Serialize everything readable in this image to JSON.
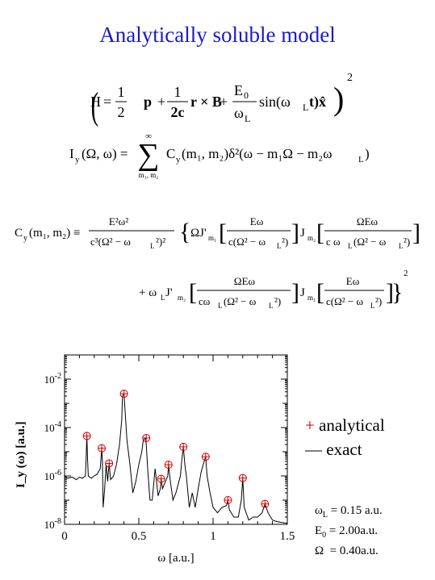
{
  "title": "Analytically soluble model",
  "equations": {
    "hamiltonian": {
      "lhs": "H",
      "half_num": "1",
      "half_den": "2",
      "p": "p",
      "frac2_num": "1",
      "frac2_den": "2c",
      "rxB": "r × B",
      "frac3_num": "E",
      "frac3_num_sub": "0",
      "frac3_den": "ω",
      "frac3_den_sub": "L",
      "sin": "sin(ω",
      "sin_sub": "L",
      "sin_end": "t)x̂",
      "power": "2"
    },
    "intensity": {
      "lhs": "I",
      "lhs_sub": "y",
      "args": "(Ω, ω) =",
      "sum_top": "∞",
      "sum_bottom": "m₁, m₂",
      "rhs": "C",
      "rhs_sub": "y",
      "rhs_rest": "(m₁, m₂)δ²(ω − m₁Ω − m₂ω",
      "rhs_sub2": "L",
      "rhs_close": ")"
    },
    "coefficient": {
      "lhs": "C",
      "lhs_sub": "y",
      "lhs_args": "(m₁, m₂) ≡",
      "prefactor_num": "E²ω²",
      "prefactor_den": "c³(Ω² − ω",
      "prefactor_den_sub": "L",
      "prefactor_den_end": "²)²",
      "term1_a": "ΩJ'",
      "term1_a_sub": "m₁",
      "term1_a_num": "Eω",
      "term1_a_den": "c(Ω² − ω",
      "term1_a_den_sub": "L",
      "term1_a_den_end": "²)",
      "term1_b": "J",
      "term1_b_sub": "m₂",
      "term1_b_num": "ΩEω",
      "term1_b_den": "c ω",
      "term1_b_den_sub": "L",
      "term1_b_den_end": "(Ω² − ω",
      "term1_b_den_sub2": "L",
      "term1_b_den_end2": "²)",
      "term2_prefix": "+ ω",
      "term2_prefix_sub": "L",
      "term2_a": "J'",
      "term2_a_sub": "m₂",
      "term2_a_num": "ΩEω",
      "term2_a_den": "cω",
      "term2_a_den_sub": "L",
      "term2_a_den_end": "(Ω² − ω",
      "term2_a_den_sub2": "L",
      "term2_a_den_end2": "²)",
      "term2_b": "J",
      "term2_b_sub": "m₁",
      "term2_b_num": "Eω",
      "term2_b_den": "c(Ω² − ω",
      "term2_b_den_sub": "L",
      "term2_b_den_end": "²)",
      "power": "2"
    }
  },
  "legend": {
    "analytical_mark": "+",
    "analytical_label": " analytical",
    "exact_mark": "—",
    "exact_label": " exact"
  },
  "parameters": [
    {
      "symbol": "ω",
      "sub": "L",
      "eq": " = 0.15 a.u."
    },
    {
      "symbol": "E",
      "sub": "0",
      "eq": " = 2.00a.u."
    },
    {
      "symbol": "Ω",
      "sub": "",
      "eq": "  = 0.40a.u."
    }
  ],
  "colors": {
    "title": "#1a1acc",
    "analytical": "#d00000",
    "exact": "#000000"
  },
  "chart_data": {
    "type": "line",
    "xlabel": "ω [a.u.]",
    "ylabel": "I_y (ω) [a.u.]",
    "xlim": [
      0,
      1.5
    ],
    "ylim": [
      1e-08,
      0.1
    ],
    "yscale": "log",
    "x_ticks": [
      0,
      0.5,
      1,
      1.5
    ],
    "x_tick_labels": [
      "0",
      "0.5",
      "1",
      "1.5"
    ],
    "y_ticks": [
      1e-08,
      1e-06,
      0.0001,
      0.01
    ],
    "y_tick_labels": [
      {
        "base": "10",
        "exp": "-8"
      },
      {
        "base": "10",
        "exp": "-6"
      },
      {
        "base": "10",
        "exp": "-4"
      },
      {
        "base": "10",
        "exp": "-2"
      }
    ],
    "series": [
      {
        "name": "analytical",
        "marker": "circle-plus",
        "x": [
          0.15,
          0.25,
          0.3,
          0.4,
          0.55,
          0.65,
          0.7,
          0.8,
          0.95,
          1.1,
          1.2,
          1.35
        ],
        "y": [
          4.5e-05,
          1.4e-05,
          3.3e-06,
          0.0025,
          3.7e-05,
          7.6e-07,
          2.9e-06,
          1.6e-05,
          6.2e-06,
          1e-07,
          8.2e-07,
          7e-08
        ]
      },
      {
        "name": "exact",
        "x": [
          0.0,
          0.02,
          0.05,
          0.08,
          0.1,
          0.12,
          0.14,
          0.145,
          0.15,
          0.155,
          0.16,
          0.18,
          0.2,
          0.22,
          0.24,
          0.245,
          0.25,
          0.255,
          0.26,
          0.27,
          0.28,
          0.29,
          0.3,
          0.31,
          0.33,
          0.35,
          0.37,
          0.385,
          0.39,
          0.4,
          0.41,
          0.42,
          0.44,
          0.46,
          0.48,
          0.5,
          0.52,
          0.53,
          0.545,
          0.55,
          0.56,
          0.575,
          0.59,
          0.61,
          0.63,
          0.645,
          0.65,
          0.66,
          0.68,
          0.695,
          0.7,
          0.71,
          0.73,
          0.75,
          0.78,
          0.79,
          0.8,
          0.81,
          0.82,
          0.84,
          0.86,
          0.88,
          0.9,
          0.92,
          0.94,
          0.95,
          0.96,
          0.98,
          1.0,
          1.03,
          1.06,
          1.09,
          1.1,
          1.11,
          1.14,
          1.17,
          1.19,
          1.2,
          1.21,
          1.24,
          1.27,
          1.3,
          1.33,
          1.35,
          1.37,
          1.4,
          1.43,
          1.46,
          1.5
        ],
        "y": [
          1e-06,
          8e-07,
          9e-07,
          7e-07,
          9e-07,
          8e-07,
          1e-06,
          5e-06,
          4.5e-05,
          5e-06,
          1e-06,
          8e-07,
          1e-06,
          1.2e-06,
          2e-06,
          5e-06,
          1.4e-05,
          4e-06,
          5e-08,
          3e-07,
          3e-06,
          6e-07,
          3.3e-06,
          7e-07,
          1e-06,
          3e-06,
          2e-05,
          0.0002,
          0.002,
          0.0025,
          0.0003,
          3e-05,
          3e-06,
          2e-07,
          6e-07,
          3e-06,
          1e-05,
          3e-05,
          3.7e-05,
          2e-05,
          2e-06,
          1e-07,
          1e-07,
          2e-06,
          1.5e-07,
          3e-07,
          7.6e-07,
          3e-07,
          6e-07,
          1e-06,
          2.9e-06,
          8e-07,
          1e-07,
          2e-07,
          1e-06,
          5e-06,
          1.6e-05,
          3e-06,
          1e-06,
          5e-08,
          2e-07,
          5e-08,
          3e-07,
          1.5e-06,
          4e-06,
          6.2e-06,
          1e-06,
          2e-07,
          5e-08,
          3e-08,
          5e-08,
          6e-08,
          1e-07,
          4e-08,
          2e-08,
          2e-08,
          1e-07,
          8.2e-07,
          5e-08,
          1.5e-08,
          2e-08,
          2e-08,
          3e-08,
          7e-08,
          3e-08,
          1.5e-08,
          1.3e-08,
          1.2e-08,
          1.1e-08
        ]
      }
    ]
  }
}
